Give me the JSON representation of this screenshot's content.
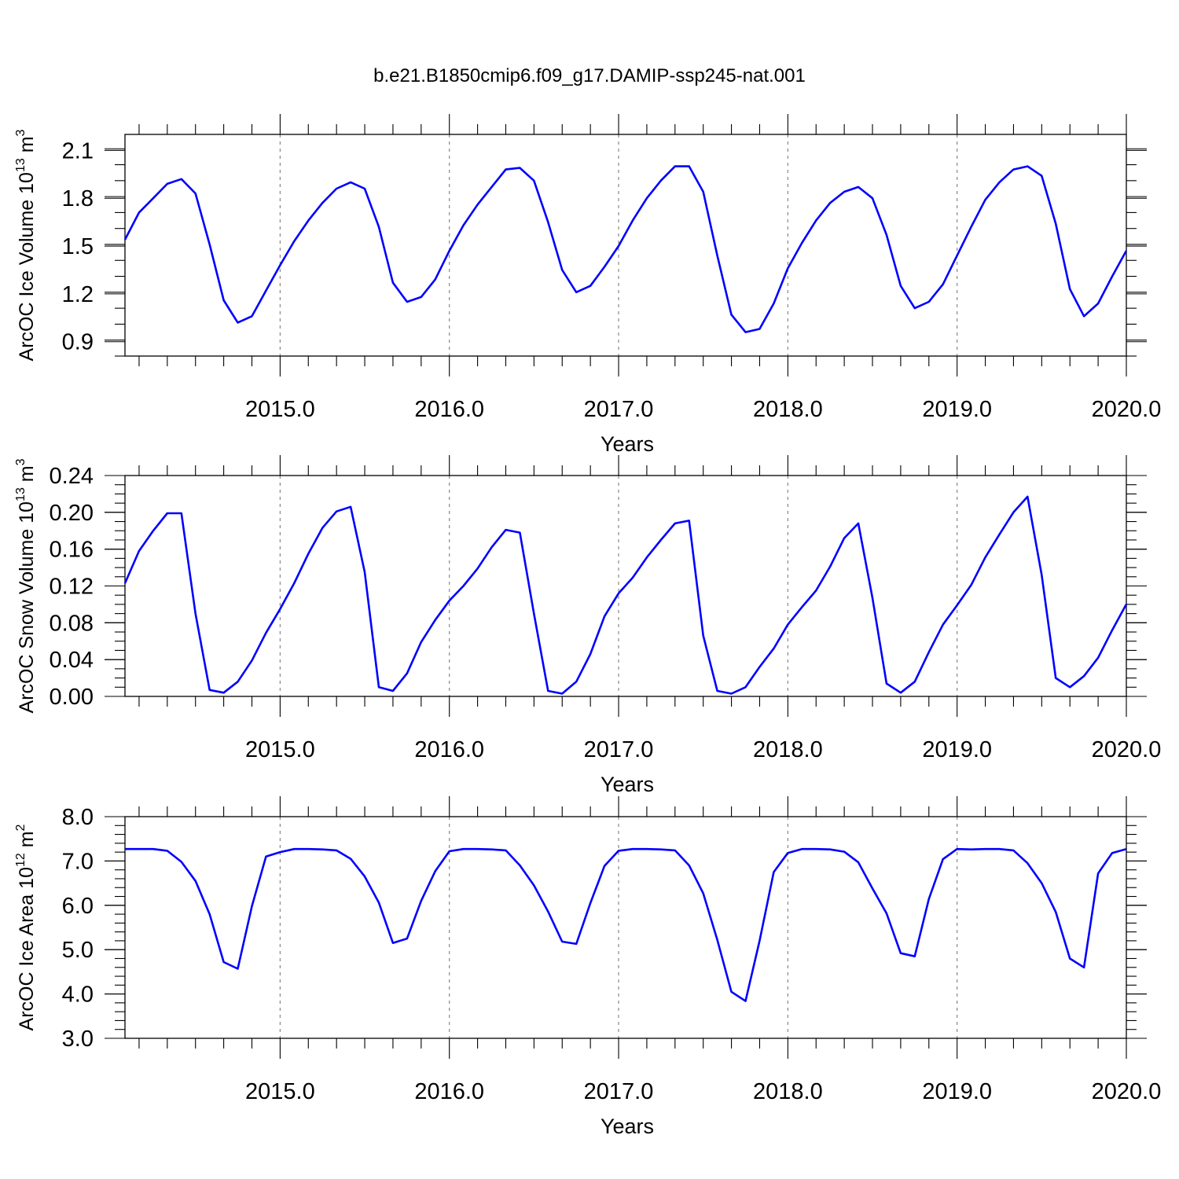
{
  "title": "b.e21.B1850cmip6.f09_g17.DAMIP-ssp245-nat.001",
  "chart_data": [
    {
      "type": "line",
      "ylabel": "ArcOC Ice Volume 10",
      "ylabel_exp": "13",
      "ylabel_unit": " m",
      "ylabel_unit_exp": "3",
      "xlabel": "Years",
      "xlim": [
        2014.0833,
        2020.0
      ],
      "ylim": [
        0.81,
        2.2
      ],
      "yticks": [
        0.9,
        1.2,
        1.5,
        1.8,
        2.1
      ],
      "ytick_labels": [
        "0.9",
        "1.2",
        "1.5",
        "1.8",
        "2.1"
      ],
      "ytick_minor": 0.1,
      "xticks": [
        2015.0,
        2016.0,
        2017.0,
        2018.0,
        2019.0,
        2020.0
      ],
      "xtick_labels": [
        "2015.0",
        "2016.0",
        "2017.0",
        "2018.0",
        "2019.0",
        "2020.0"
      ],
      "grid_x": true,
      "x_start": 2014.0833,
      "x_step": 0.08333,
      "values": [
        1.54,
        1.71,
        1.8,
        1.89,
        1.92,
        1.83,
        1.51,
        1.16,
        1.02,
        1.06,
        1.22,
        1.38,
        1.53,
        1.66,
        1.77,
        1.86,
        1.9,
        1.86,
        1.62,
        1.27,
        1.15,
        1.18,
        1.29,
        1.47,
        1.63,
        1.76,
        1.87,
        1.98,
        1.99,
        1.91,
        1.65,
        1.35,
        1.21,
        1.25,
        1.37,
        1.5,
        1.66,
        1.8,
        1.91,
        2.0,
        2.0,
        1.84,
        1.44,
        1.07,
        0.96,
        0.98,
        1.14,
        1.36,
        1.52,
        1.66,
        1.77,
        1.84,
        1.87,
        1.8,
        1.57,
        1.25,
        1.11,
        1.15,
        1.26,
        1.44,
        1.62,
        1.79,
        1.9,
        1.98,
        2.0,
        1.94,
        1.64,
        1.23,
        1.06,
        1.14,
        1.31,
        1.47
      ]
    },
    {
      "type": "line",
      "ylabel": "ArcOC Snow Volume 10",
      "ylabel_exp": "13",
      "ylabel_unit": " m",
      "ylabel_unit_exp": "3",
      "xlabel": "Years",
      "xlim": [
        2014.0833,
        2020.0
      ],
      "ylim": [
        0.0,
        0.24
      ],
      "yticks": [
        0.0,
        0.04,
        0.08,
        0.12,
        0.16,
        0.2,
        0.24
      ],
      "ytick_labels": [
        "0.00",
        "0.04",
        "0.08",
        "0.12",
        "0.16",
        "0.20",
        "0.24"
      ],
      "ytick_minor": 0.01,
      "xticks": [
        2015.0,
        2016.0,
        2017.0,
        2018.0,
        2019.0,
        2020.0
      ],
      "xtick_labels": [
        "2015.0",
        "2016.0",
        "2017.0",
        "2018.0",
        "2019.0",
        "2020.0"
      ],
      "grid_x": true,
      "x_start": 2014.0833,
      "x_step": 0.08333,
      "values": [
        0.123,
        0.158,
        0.18,
        0.199,
        0.199,
        0.09,
        0.007,
        0.004,
        0.016,
        0.039,
        0.069,
        0.095,
        0.123,
        0.155,
        0.183,
        0.201,
        0.206,
        0.135,
        0.01,
        0.006,
        0.025,
        0.059,
        0.083,
        0.104,
        0.12,
        0.139,
        0.162,
        0.181,
        0.178,
        0.09,
        0.006,
        0.003,
        0.016,
        0.046,
        0.087,
        0.112,
        0.129,
        0.151,
        0.17,
        0.188,
        0.191,
        0.066,
        0.006,
        0.003,
        0.01,
        0.032,
        0.052,
        0.078,
        0.097,
        0.115,
        0.141,
        0.172,
        0.188,
        0.107,
        0.014,
        0.004,
        0.016,
        0.048,
        0.078,
        0.099,
        0.121,
        0.151,
        0.176,
        0.2,
        0.217,
        0.132,
        0.02,
        0.01,
        0.022,
        0.042,
        0.072,
        0.1
      ]
    },
    {
      "type": "line",
      "ylabel": "ArcOC Ice Area 10",
      "ylabel_exp": "12",
      "ylabel_unit": " m",
      "ylabel_unit_exp": "2",
      "xlabel": "Years",
      "xlim": [
        2014.0833,
        2020.0
      ],
      "ylim": [
        3.0,
        8.0
      ],
      "yticks": [
        3.0,
        4.0,
        5.0,
        6.0,
        7.0,
        8.0
      ],
      "ytick_labels": [
        "3.0",
        "4.0",
        "5.0",
        "6.0",
        "7.0",
        "8.0"
      ],
      "ytick_minor": 0.2,
      "xticks": [
        2015.0,
        2016.0,
        2017.0,
        2018.0,
        2019.0,
        2020.0
      ],
      "xtick_labels": [
        "2015.0",
        "2016.0",
        "2017.0",
        "2018.0",
        "2019.0",
        "2020.0"
      ],
      "grid_x": true,
      "x_start": 2014.0833,
      "x_step": 0.08333,
      "values": [
        7.27,
        7.27,
        7.27,
        7.23,
        6.98,
        6.55,
        5.8,
        4.72,
        4.57,
        5.98,
        7.1,
        7.2,
        7.27,
        7.27,
        7.26,
        7.24,
        7.05,
        6.65,
        6.06,
        5.15,
        5.25,
        6.1,
        6.77,
        7.22,
        7.27,
        7.27,
        7.26,
        7.24,
        6.9,
        6.45,
        5.86,
        5.18,
        5.13,
        6.05,
        6.89,
        7.23,
        7.27,
        7.27,
        7.26,
        7.24,
        6.9,
        6.27,
        5.22,
        4.05,
        3.84,
        5.2,
        6.75,
        7.18,
        7.27,
        7.27,
        7.26,
        7.21,
        6.97,
        6.38,
        5.82,
        4.92,
        4.85,
        6.14,
        7.04,
        7.27,
        7.26,
        7.27,
        7.27,
        7.24,
        6.95,
        6.5,
        5.85,
        4.8,
        4.6,
        6.72,
        7.18,
        7.27
      ]
    }
  ]
}
